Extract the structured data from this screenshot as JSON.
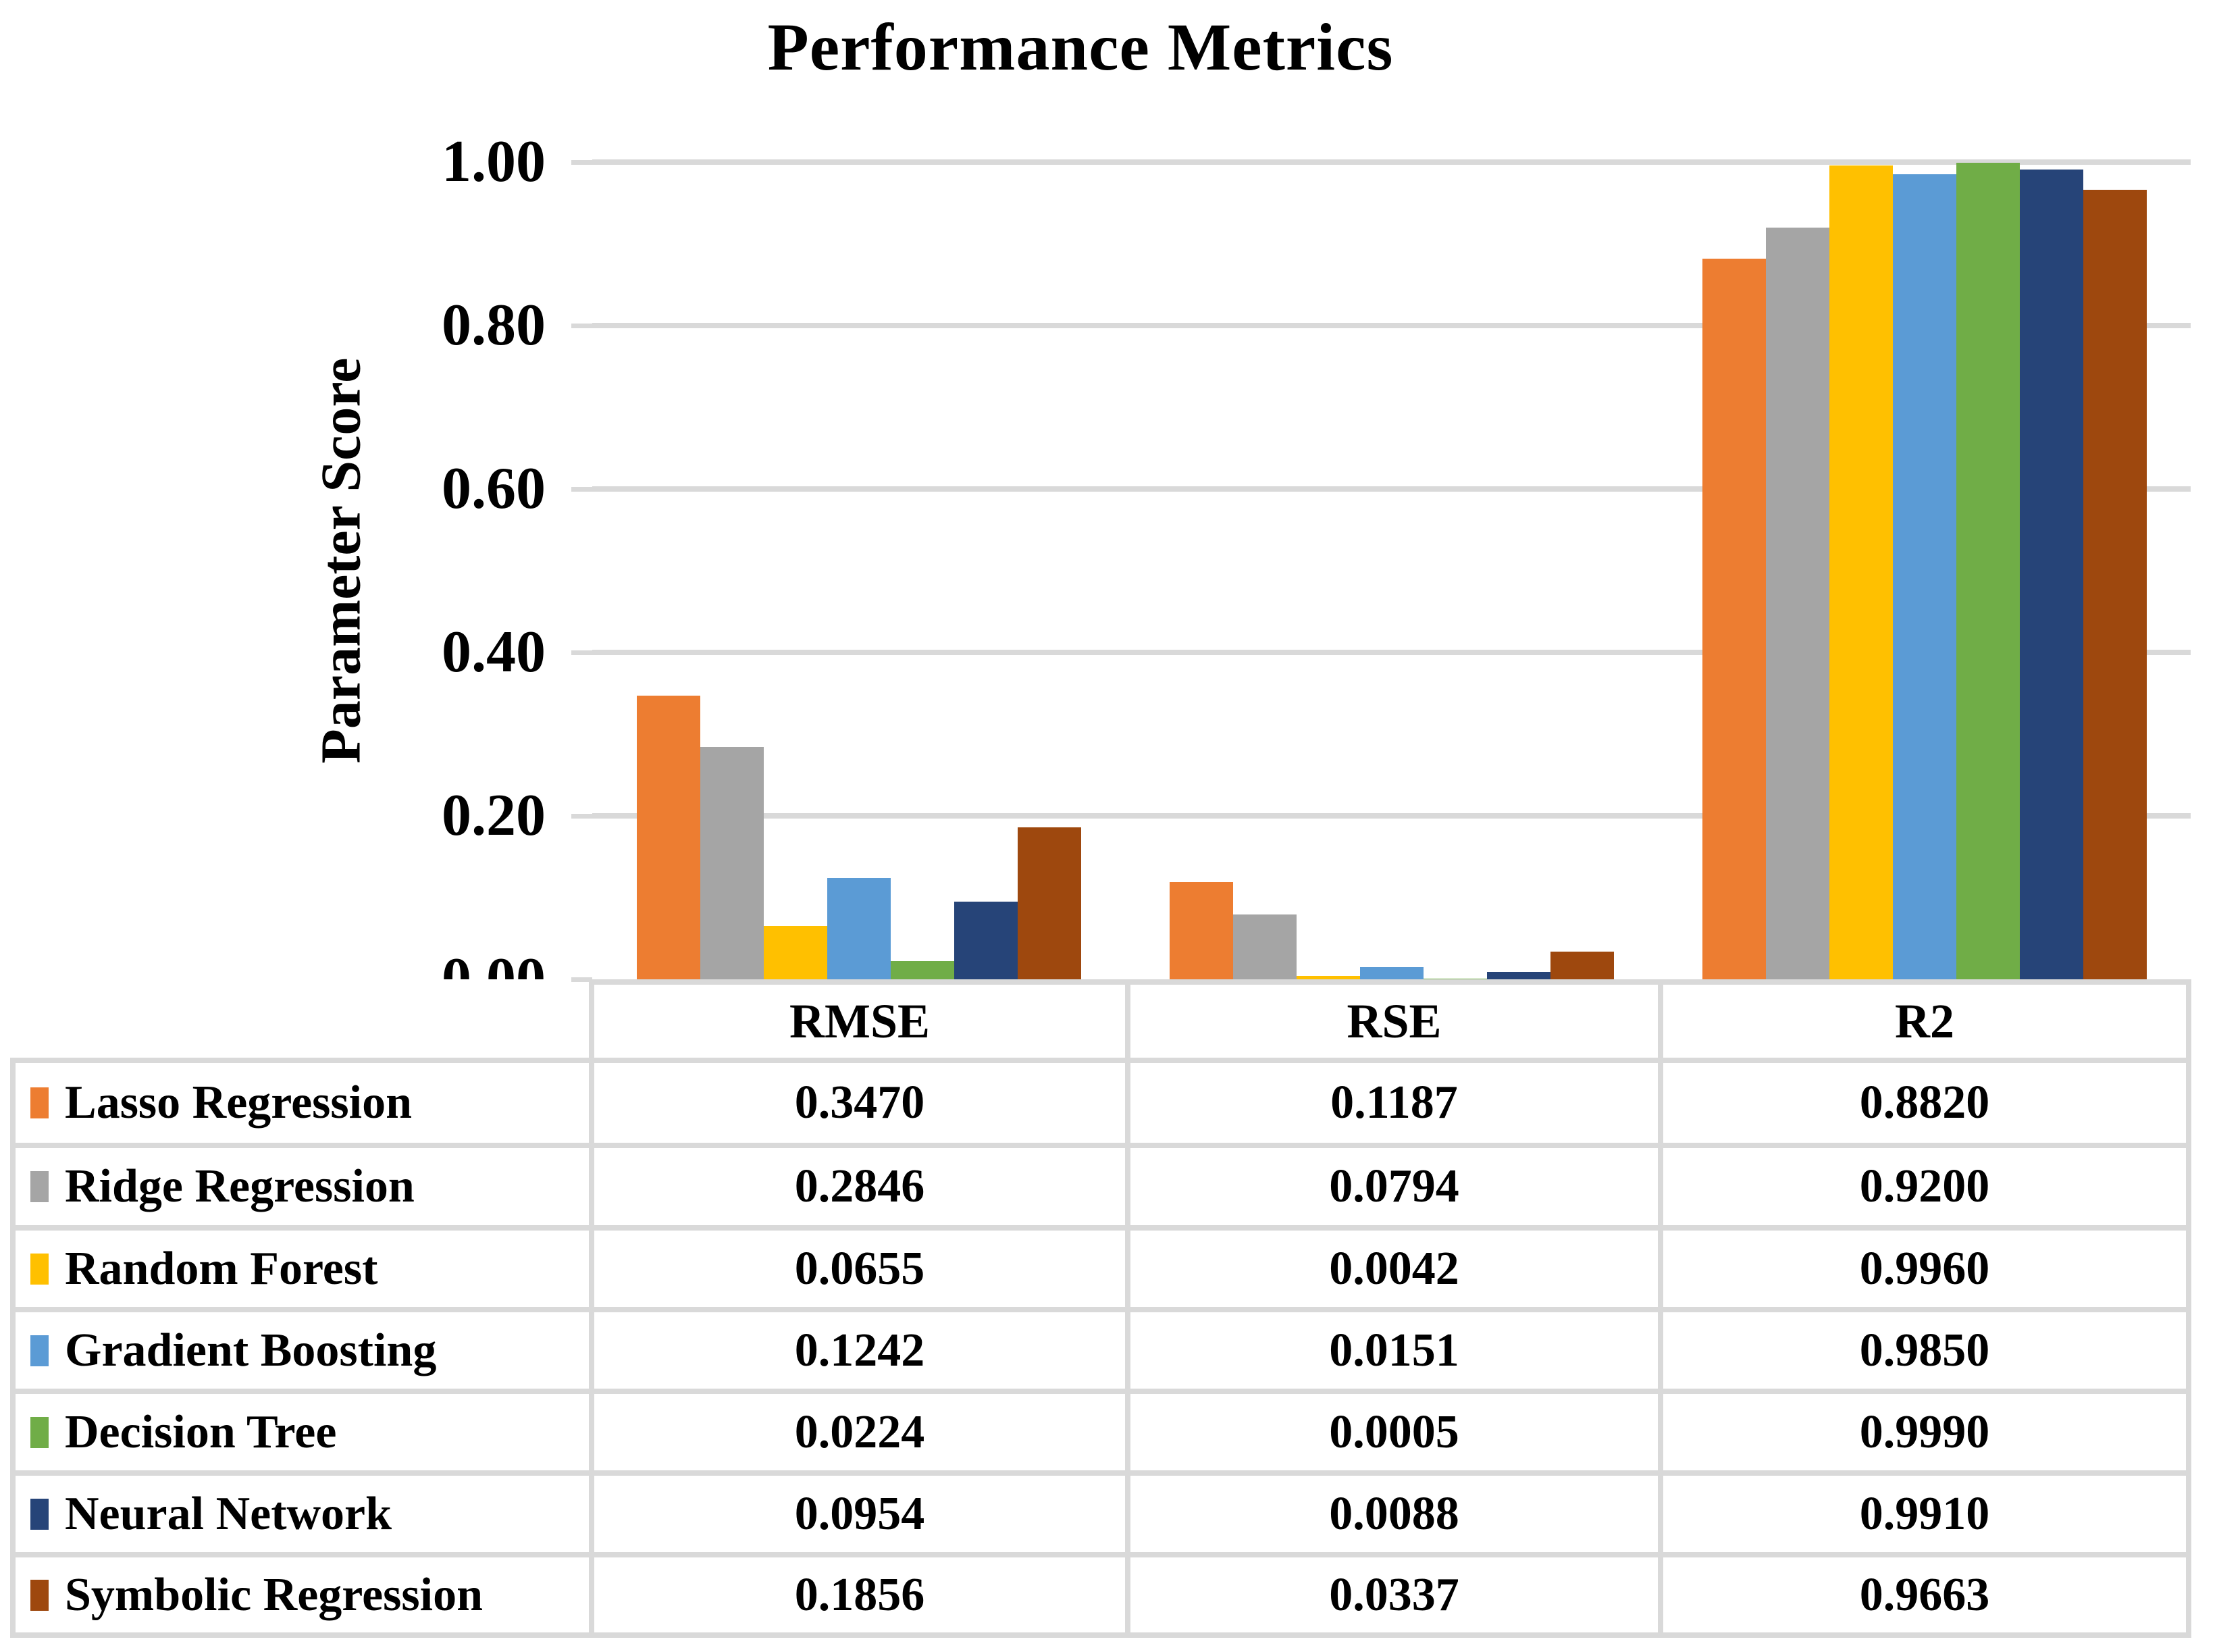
{
  "title": "Performance Metrics",
  "y_axis": {
    "title": "Parameter Score",
    "tick_labels": [
      "0.00",
      "0.20",
      "0.40",
      "0.60",
      "0.80",
      "1.00"
    ],
    "range": [
      0,
      1
    ],
    "grid_color": "#D9D9D9"
  },
  "chart_data": {
    "type": "bar",
    "title": "Performance Metrics",
    "categories": [
      "RMSE",
      "RSE",
      "R2"
    ],
    "series": [
      {
        "name": "Lasso Regression",
        "color": "#ED7D31",
        "values": [
          0.347,
          0.1187,
          0.882
        ]
      },
      {
        "name": "Ridge Regression",
        "color": "#A5A5A5",
        "values": [
          0.2846,
          0.0794,
          0.92
        ]
      },
      {
        "name": "Random Forest",
        "color": "#FFC000",
        "values": [
          0.0655,
          0.0042,
          0.996
        ]
      },
      {
        "name": "Gradient Boosting",
        "color": "#5B9BD5",
        "values": [
          0.1242,
          0.0151,
          0.985
        ]
      },
      {
        "name": "Decision Tree",
        "color": "#70AD47",
        "values": [
          0.0224,
          0.0005,
          0.999
        ]
      },
      {
        "name": "Neural Network",
        "color": "#264478",
        "values": [
          0.0954,
          0.0088,
          0.991
        ]
      },
      {
        "name": "Symbolic Regression",
        "color": "#9E480E",
        "values": [
          0.1856,
          0.0337,
          0.9663
        ]
      }
    ],
    "xlabel": "",
    "ylabel": "Parameter Score",
    "ylim": [
      0,
      1.0
    ],
    "ytick_step": 0.2,
    "grid": true,
    "legend_position": "table-rows-left"
  },
  "table": {
    "column_headers": [
      "RMSE",
      "RSE",
      "R2"
    ],
    "rows": [
      {
        "label": "Lasso Regression",
        "swatch_color": "#ED7D31",
        "values": [
          "0.3470",
          "0.1187",
          "0.8820"
        ]
      },
      {
        "label": "Ridge Regression",
        "swatch_color": "#A5A5A5",
        "values": [
          "0.2846",
          "0.0794",
          "0.9200"
        ]
      },
      {
        "label": "Random Forest",
        "swatch_color": "#FFC000",
        "values": [
          "0.0655",
          "0.0042",
          "0.9960"
        ]
      },
      {
        "label": "Gradient Boosting",
        "swatch_color": "#5B9BD5",
        "values": [
          "0.1242",
          "0.0151",
          "0.9850"
        ]
      },
      {
        "label": "Decision Tree",
        "swatch_color": "#70AD47",
        "values": [
          "0.0224",
          "0.0005",
          "0.9990"
        ]
      },
      {
        "label": "Neural Network",
        "swatch_color": "#264478",
        "values": [
          "0.0954",
          "0.0088",
          "0.9910"
        ]
      },
      {
        "label": "Symbolic Regression",
        "swatch_color": "#9E480E",
        "values": [
          "0.1856",
          "0.0337",
          "0.9663"
        ]
      }
    ]
  }
}
